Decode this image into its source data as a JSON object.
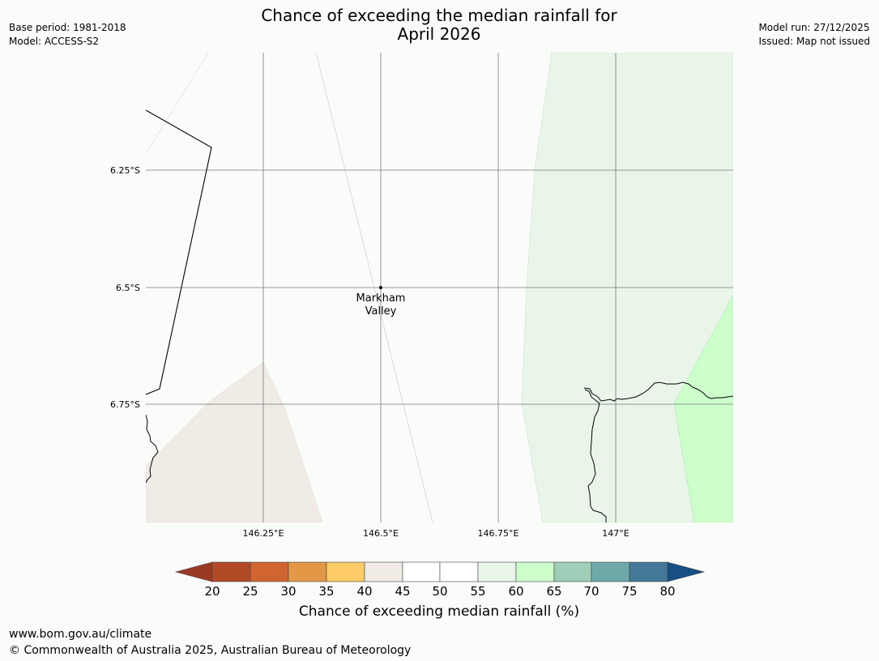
{
  "title_line1": "Chance of exceeding the median rainfall for",
  "title_line2": "April 2026",
  "meta_left": {
    "base_period": "Base period: 1981-2018",
    "model": "Model: ACCESS-S2"
  },
  "meta_right": {
    "model_run": "Model run: 27/12/2025",
    "issued": "Issued: Map not issued"
  },
  "map": {
    "lat_labels": [
      "6.25°S",
      "6.5°S",
      "6.75°S"
    ],
    "lon_labels": [
      "146.25°E",
      "146.5°E",
      "146.75°E",
      "147°E"
    ],
    "place": {
      "name_line1": "Markham",
      "name_line2": "Valley"
    }
  },
  "legend": {
    "title": "Chance of exceeding median rainfall (%)",
    "ticks": [
      "20",
      "25",
      "30",
      "35",
      "40",
      "45",
      "50",
      "55",
      "60",
      "65",
      "70",
      "75",
      "80"
    ],
    "colors": {
      "below_20": "#9b3a24",
      "20_25": "#b34a27",
      "25_30": "#d06532",
      "30_35": "#e39848",
      "35_40": "#fdcc66",
      "40_45": "#f0ebe5",
      "45_50": "#ffffff",
      "50_55": "#ffffff",
      "55_60": "#eaf5ea",
      "60_65": "#ccffcc",
      "65_70": "#9fcfb8",
      "70_75": "#6fa8a8",
      "75_80": "#447899",
      "above_80": "#174e85"
    }
  },
  "footer": {
    "url": "www.bom.gov.au/climate",
    "copyright": "© Commonwealth of Australia 2025, Australian Bureau of Meteorology"
  }
}
